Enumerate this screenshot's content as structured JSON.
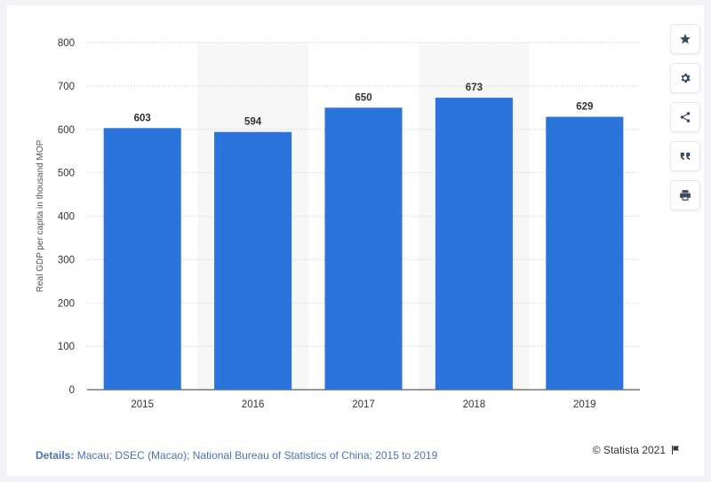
{
  "chart_data": {
    "type": "bar",
    "categories": [
      "2015",
      "2016",
      "2017",
      "2018",
      "2019"
    ],
    "values": [
      603,
      594,
      650,
      673,
      629
    ],
    "data_labels": [
      "603",
      "594",
      "650",
      "673",
      "629"
    ],
    "ylabel": "Real GDP per capita in thousand MOP",
    "xlabel": "",
    "title": "",
    "ylim": [
      0,
      800
    ],
    "yticks": [
      0,
      100,
      200,
      300,
      400,
      500,
      600,
      700,
      800
    ],
    "grid": "horizontal dotted",
    "alternating_column_shading": true,
    "bar_color": "#2a74db"
  },
  "toolbar": {
    "buttons": [
      {
        "icon": "star-icon"
      },
      {
        "icon": "gear-icon"
      },
      {
        "icon": "share-icon"
      },
      {
        "icon": "quote-icon"
      },
      {
        "icon": "print-icon"
      }
    ]
  },
  "footer": {
    "details_label": "Details:",
    "details_text": "Macau; DSEC (Macao); National Bureau of Statistics of China; 2015 to 2019",
    "copyright": "© Statista 2021"
  },
  "colors": {
    "accent": "#2a74db",
    "link": "#4a72c2",
    "icon": "#3b4a63"
  }
}
